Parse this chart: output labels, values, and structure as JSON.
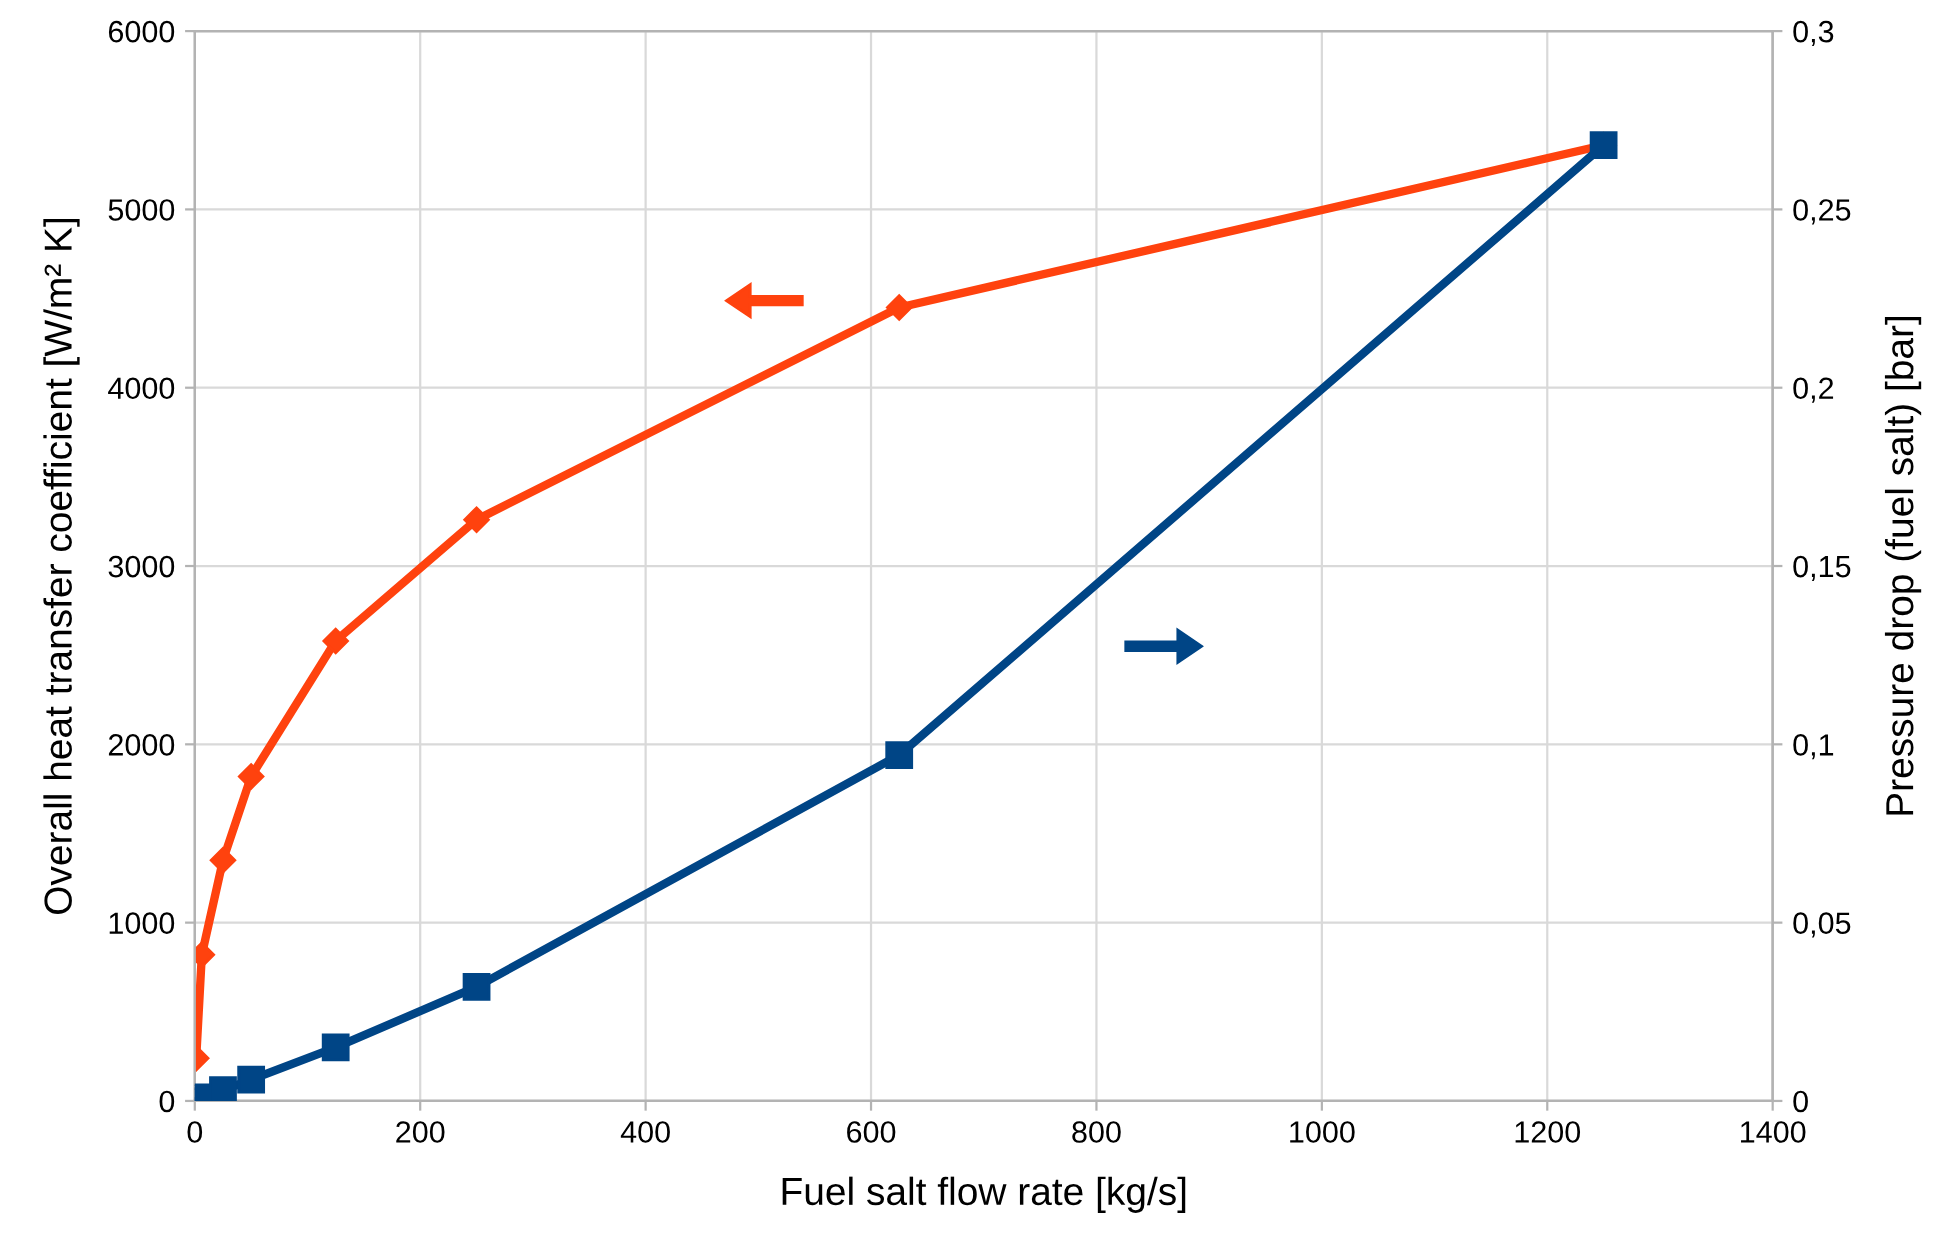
{
  "chart_data": {
    "type": "line",
    "xlabel": "Fuel salt flow rate [kg/s]",
    "ylabel": "Overall heat transfer coefficient [W/m² K]",
    "y2label": "Pressure drop (fuel salt) [bar]",
    "x": [
      1.25,
      6.25,
      25,
      50,
      125,
      250,
      625,
      1250
    ],
    "series": [
      {
        "color": "#ff420e",
        "marker": "diamond",
        "values": [
          240,
          820,
          1350,
          1820,
          2580,
          3260,
          4450,
          5360
        ]
      },
      {
        "color": "#004586",
        "marker": "square",
        "axis": "y2",
        "values": [
          0,
          0.001,
          0.003,
          0.006,
          0.015,
          0.032,
          0.097,
          0.268
        ]
      }
    ],
    "xlim": [
      0,
      1400
    ],
    "xticks": [
      0,
      200,
      400,
      600,
      800,
      1000,
      1200,
      1400
    ],
    "ylim": [
      0,
      6000
    ],
    "yticks": [
      0,
      1000,
      2000,
      3000,
      4000,
      5000,
      6000
    ],
    "y2lim": [
      0,
      0.3
    ],
    "y2ticks": [
      {
        "value": 0,
        "label": "0"
      },
      {
        "value": 0.05,
        "label": "0,05"
      },
      {
        "value": 0.1,
        "label": "0,1"
      },
      {
        "value": 0.15,
        "label": "0,15"
      },
      {
        "value": 0.2,
        "label": "0,2"
      },
      {
        "value": 0.25,
        "label": "0,25"
      },
      {
        "value": 0.3,
        "label": "0,3"
      }
    ],
    "grid": true,
    "line_style": "solid"
  }
}
